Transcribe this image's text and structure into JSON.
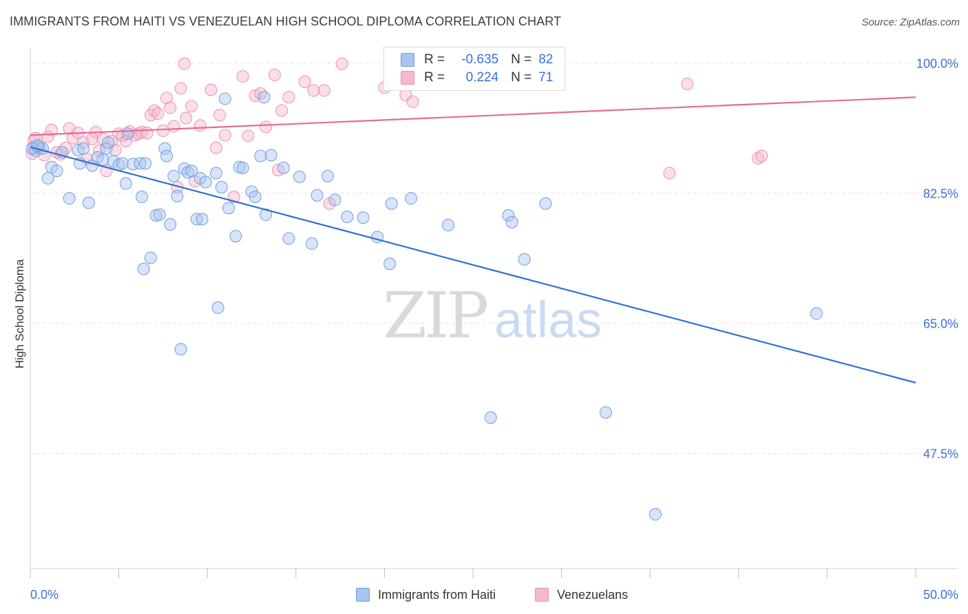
{
  "title": "IMMIGRANTS FROM HAITI VS VENEZUELAN HIGH SCHOOL DIPLOMA CORRELATION CHART",
  "source": "Source: ZipAtlas.com",
  "watermark": {
    "zip": "ZIP",
    "atlas": "atlas"
  },
  "colors": {
    "haiti_fill": "#a9c4ee",
    "haiti_stroke": "#6f9ee0",
    "haiti_line": "#2f6fd1",
    "venez_fill": "#f6b8cc",
    "venez_stroke": "#ee8fae",
    "venez_line": "#e46b95",
    "axis_label": "#3a6fd6",
    "grid": "#e3e3e3"
  },
  "legend": {
    "r_label": "R =",
    "n_label": "N =",
    "rows": [
      {
        "r": "-0.635",
        "n": "82"
      },
      {
        "r": "0.224",
        "n": "71"
      }
    ]
  },
  "bottom_legend": [
    "Immigrants from Haiti",
    "Venezuelans"
  ],
  "chart_data": {
    "type": "scatter",
    "title": "IMMIGRANTS FROM HAITI VS VENEZUELAN HIGH SCHOOL DIPLOMA CORRELATION CHART",
    "xlabel": "",
    "ylabel": "High School Diploma",
    "xlim": [
      0,
      50
    ],
    "ylim": [
      32,
      102
    ],
    "x_tick_labels": [
      "0.0%",
      "50.0%"
    ],
    "y_ticks": [
      47.5,
      65.0,
      82.5,
      100.0
    ],
    "y_tick_labels": [
      "47.5%",
      "65.0%",
      "82.5%",
      "100.0%"
    ],
    "grid": true,
    "legend_position": "top-center",
    "series": [
      {
        "name": "Immigrants from Haiti",
        "stats": {
          "R": -0.635,
          "N": 82
        },
        "trend": {
          "x": [
            0,
            50
          ],
          "y": [
            88.7,
            57.0
          ]
        },
        "points": [
          [
            0.2,
            88.6
          ],
          [
            0.3,
            88.2
          ],
          [
            0.5,
            88.8
          ],
          [
            0.7,
            88.5
          ],
          [
            1.0,
            84.5
          ],
          [
            1.2,
            86.0
          ],
          [
            1.5,
            85.5
          ],
          [
            1.8,
            88.0
          ],
          [
            2.2,
            81.8
          ],
          [
            2.7,
            88.3
          ],
          [
            2.8,
            86.5
          ],
          [
            3.0,
            88.5
          ],
          [
            3.3,
            81.2
          ],
          [
            3.5,
            86.2
          ],
          [
            3.8,
            87.3
          ],
          [
            4.1,
            87.0
          ],
          [
            4.3,
            88.5
          ],
          [
            4.4,
            89.3
          ],
          [
            4.7,
            86.8
          ],
          [
            5.0,
            86.3
          ],
          [
            5.2,
            86.5
          ],
          [
            5.4,
            83.8
          ],
          [
            5.5,
            90.5
          ],
          [
            5.8,
            86.4
          ],
          [
            6.2,
            86.5
          ],
          [
            6.3,
            82.0
          ],
          [
            6.4,
            72.3
          ],
          [
            6.5,
            86.5
          ],
          [
            6.8,
            73.8
          ],
          [
            7.1,
            79.5
          ],
          [
            7.3,
            79.6
          ],
          [
            7.6,
            88.5
          ],
          [
            7.7,
            87.5
          ],
          [
            7.9,
            78.3
          ],
          [
            8.1,
            84.8
          ],
          [
            8.3,
            82.1
          ],
          [
            8.5,
            61.5
          ],
          [
            8.7,
            85.8
          ],
          [
            8.9,
            85.3
          ],
          [
            9.1,
            85.5
          ],
          [
            9.4,
            79.0
          ],
          [
            9.6,
            84.5
          ],
          [
            9.7,
            79.0
          ],
          [
            9.9,
            84.0
          ],
          [
            10.5,
            85.2
          ],
          [
            10.6,
            67.1
          ],
          [
            10.8,
            83.3
          ],
          [
            11.0,
            95.2
          ],
          [
            11.2,
            80.5
          ],
          [
            11.6,
            76.7
          ],
          [
            11.8,
            86.0
          ],
          [
            12.0,
            85.9
          ],
          [
            12.5,
            82.7
          ],
          [
            12.7,
            82.0
          ],
          [
            13.0,
            87.5
          ],
          [
            13.2,
            95.4
          ],
          [
            13.3,
            79.6
          ],
          [
            13.6,
            87.6
          ],
          [
            14.3,
            85.9
          ],
          [
            14.6,
            76.4
          ],
          [
            15.2,
            84.7
          ],
          [
            15.9,
            75.7
          ],
          [
            16.2,
            82.2
          ],
          [
            16.8,
            84.8
          ],
          [
            17.2,
            81.6
          ],
          [
            17.9,
            79.3
          ],
          [
            18.8,
            79.2
          ],
          [
            19.6,
            76.6
          ],
          [
            20.3,
            73.0
          ],
          [
            20.4,
            81.1
          ],
          [
            21.5,
            81.8
          ],
          [
            23.6,
            78.2
          ],
          [
            26.0,
            52.3
          ],
          [
            27.0,
            79.5
          ],
          [
            27.2,
            78.6
          ],
          [
            27.9,
            73.6
          ],
          [
            29.1,
            81.1
          ],
          [
            32.5,
            53.0
          ],
          [
            35.3,
            39.3
          ],
          [
            44.4,
            66.3
          ],
          [
            0.1,
            88.5
          ],
          [
            0.4,
            88.9
          ]
        ]
      },
      {
        "name": "Venezuelans",
        "stats": {
          "R": 0.224,
          "N": 71
        },
        "trend": {
          "x": [
            0,
            50
          ],
          "y": [
            90.3,
            95.4
          ]
        },
        "points": [
          [
            0.1,
            87.8
          ],
          [
            0.2,
            89.6
          ],
          [
            0.3,
            89.9
          ],
          [
            0.5,
            88.5
          ],
          [
            0.8,
            87.6
          ],
          [
            1.0,
            90.1
          ],
          [
            1.2,
            91.0
          ],
          [
            1.5,
            88.0
          ],
          [
            1.7,
            87.7
          ],
          [
            2.0,
            88.6
          ],
          [
            2.2,
            91.2
          ],
          [
            2.4,
            89.9
          ],
          [
            2.7,
            90.6
          ],
          [
            3.0,
            89.3
          ],
          [
            3.2,
            87.1
          ],
          [
            3.5,
            89.8
          ],
          [
            3.7,
            90.7
          ],
          [
            3.9,
            88.2
          ],
          [
            4.1,
            89.8
          ],
          [
            4.3,
            85.5
          ],
          [
            4.6,
            89.5
          ],
          [
            4.8,
            88.3
          ],
          [
            5.0,
            90.5
          ],
          [
            5.2,
            90.2
          ],
          [
            5.4,
            89.5
          ],
          [
            5.6,
            90.8
          ],
          [
            5.9,
            90.3
          ],
          [
            6.1,
            90.5
          ],
          [
            6.3,
            90.7
          ],
          [
            6.6,
            90.6
          ],
          [
            6.8,
            93.0
          ],
          [
            7.0,
            93.6
          ],
          [
            7.2,
            93.2
          ],
          [
            7.5,
            90.9
          ],
          [
            7.7,
            95.3
          ],
          [
            7.9,
            94.0
          ],
          [
            8.1,
            91.5
          ],
          [
            8.3,
            83.3
          ],
          [
            8.5,
            96.6
          ],
          [
            8.7,
            99.9
          ],
          [
            8.8,
            92.6
          ],
          [
            9.1,
            94.2
          ],
          [
            9.3,
            84.1
          ],
          [
            9.6,
            91.6
          ],
          [
            10.2,
            96.4
          ],
          [
            10.5,
            88.6
          ],
          [
            10.7,
            93.0
          ],
          [
            11.0,
            90.3
          ],
          [
            11.5,
            82.0
          ],
          [
            12.0,
            98.2
          ],
          [
            12.3,
            90.2
          ],
          [
            12.7,
            95.6
          ],
          [
            13.0,
            95.9
          ],
          [
            13.3,
            91.4
          ],
          [
            13.8,
            98.4
          ],
          [
            14.0,
            85.6
          ],
          [
            14.2,
            93.6
          ],
          [
            14.6,
            95.4
          ],
          [
            15.5,
            97.5
          ],
          [
            16.0,
            96.3
          ],
          [
            16.6,
            96.3
          ],
          [
            16.9,
            81.1
          ],
          [
            17.6,
            99.9
          ],
          [
            20.0,
            96.7
          ],
          [
            21.2,
            95.7
          ],
          [
            21.6,
            94.8
          ],
          [
            25.4,
            97.6
          ],
          [
            36.1,
            85.2
          ],
          [
            37.1,
            97.2
          ],
          [
            41.1,
            87.2
          ],
          [
            41.3,
            87.5
          ]
        ]
      }
    ]
  }
}
